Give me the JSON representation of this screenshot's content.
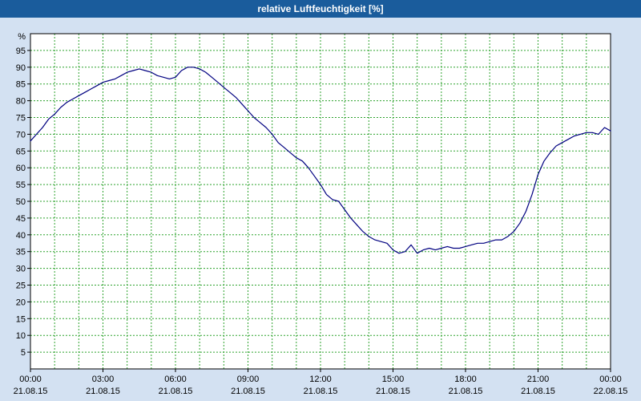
{
  "title": "relative Luftfeuchtigkeit [%]",
  "colors": {
    "titlebar_bg": "#1A5C9C",
    "titlebar_text": "#FFFFFF",
    "window_bg": "#D3E1F2",
    "plot_bg": "#FFFFFF",
    "grid": "#2FA32F",
    "line": "#000080",
    "axis": "#000000"
  },
  "chart_data": {
    "type": "line",
    "title": "relative Luftfeuchtigkeit [%]",
    "ylabel": "%",
    "xlabel": "",
    "ylim": [
      0,
      100
    ],
    "xlim": [
      0,
      24
    ],
    "y_tick_step": 5,
    "y_ticks": [
      5,
      10,
      15,
      20,
      25,
      30,
      35,
      40,
      45,
      50,
      55,
      60,
      65,
      70,
      75,
      80,
      85,
      90,
      95
    ],
    "grid": true,
    "grid_style": "dashed-green",
    "legend_position": "none",
    "x_ticks": [
      {
        "hour": 0,
        "time": "00:00",
        "date": "21.08.15"
      },
      {
        "hour": 3,
        "time": "03:00",
        "date": "21.08.15"
      },
      {
        "hour": 6,
        "time": "06:00",
        "date": "21.08.15"
      },
      {
        "hour": 9,
        "time": "09:00",
        "date": "21.08.15"
      },
      {
        "hour": 12,
        "time": "12:00",
        "date": "21.08.15"
      },
      {
        "hour": 15,
        "time": "15:00",
        "date": "21.08.15"
      },
      {
        "hour": 18,
        "time": "18:00",
        "date": "21.08.15"
      },
      {
        "hour": 21,
        "time": "21:00",
        "date": "21.08.15"
      },
      {
        "hour": 24,
        "time": "00:00",
        "date": "22.08.15"
      }
    ],
    "series": [
      {
        "name": "relative Luftfeuchtigkeit",
        "x": [
          0,
          0.25,
          0.5,
          0.75,
          1,
          1.25,
          1.5,
          1.75,
          2,
          2.25,
          2.5,
          2.75,
          3,
          3.25,
          3.5,
          3.75,
          4,
          4.25,
          4.5,
          4.75,
          5,
          5.25,
          5.5,
          5.75,
          6,
          6.25,
          6.5,
          6.75,
          7,
          7.25,
          7.5,
          7.75,
          8,
          8.25,
          8.5,
          8.75,
          9,
          9.25,
          9.5,
          9.75,
          10,
          10.25,
          10.5,
          10.75,
          11,
          11.25,
          11.5,
          11.75,
          12,
          12.25,
          12.5,
          12.75,
          13,
          13.25,
          13.5,
          13.75,
          14,
          14.25,
          14.5,
          14.75,
          15,
          15.25,
          15.5,
          15.75,
          16,
          16.25,
          16.5,
          16.75,
          17,
          17.25,
          17.5,
          17.75,
          18,
          18.25,
          18.5,
          18.75,
          19,
          19.25,
          19.5,
          19.75,
          20,
          20.25,
          20.5,
          20.75,
          21,
          21.25,
          21.5,
          21.75,
          22,
          22.25,
          22.5,
          22.75,
          23,
          23.25,
          23.5,
          23.75,
          24
        ],
        "values": [
          68,
          70,
          72,
          74.5,
          76,
          78,
          79.5,
          80.5,
          81.5,
          82.5,
          83.5,
          84.5,
          85.5,
          86,
          86.5,
          87.5,
          88.5,
          89,
          89.5,
          89,
          88.5,
          87.5,
          87,
          86.5,
          87,
          89,
          90,
          90,
          89.5,
          88.5,
          87,
          85.5,
          84,
          82.5,
          81,
          79,
          77,
          75,
          73.5,
          72,
          70,
          67.5,
          66,
          64.5,
          63,
          62,
          60,
          57.5,
          55,
          52,
          50.5,
          50,
          47.5,
          45,
          43,
          41,
          39.5,
          38.5,
          38,
          37.5,
          35.5,
          34.5,
          35,
          37,
          34.5,
          35.5,
          36,
          35.5,
          36,
          36.5,
          36,
          36,
          36.5,
          37,
          37.5,
          37.5,
          38,
          38.5,
          38.5,
          39.5,
          41,
          43.5,
          47,
          52,
          58,
          62,
          64.5,
          66.5,
          67.5,
          68.5,
          69.5,
          70,
          70.5,
          70.5,
          70,
          72,
          71
        ]
      }
    ]
  }
}
